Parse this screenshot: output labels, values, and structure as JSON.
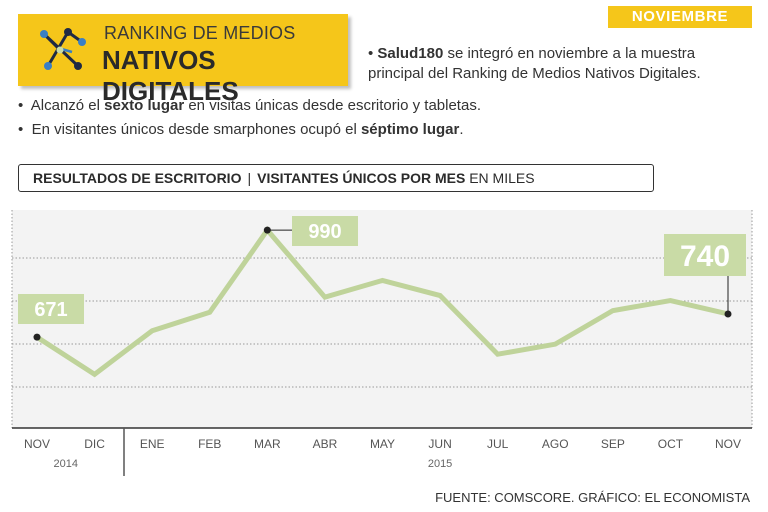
{
  "header": {
    "line1": "RANKING DE MEDIOS",
    "line2": "NATIVOS DIGITALES"
  },
  "badge": "NOVIEMBRE",
  "notes": {
    "n1_bold": "Salud180",
    "n1_rest": " se integró en noviembre a la muestra",
    "n1_line2": "principal del Ranking de Medios Nativos Digitales.",
    "n2_pre": "Alcanzó el ",
    "n2_bold": "sexto lugar",
    "n2_post": " en visitas únicas desde escritorio y tabletas.",
    "n3_pre": "En visitantes únicos desde smarphones ocupó el ",
    "n3_bold": "séptimo lugar",
    "n3_post": "."
  },
  "subhead": {
    "part1": "RESULTADOS DE ESCRITORIO",
    "separator": "|",
    "part2": "VISITANTES ÚNICOS POR MES",
    "unit": "EN MILES"
  },
  "chart_data": {
    "type": "line",
    "categories": [
      "NOV",
      "DIC",
      "ENE",
      "FEB",
      "MAR",
      "ABR",
      "MAY",
      "JUN",
      "JUL",
      "AGO",
      "SEP",
      "OCT",
      "NOV"
    ],
    "values": [
      671,
      560,
      690,
      745,
      990,
      790,
      840,
      795,
      620,
      650,
      750,
      780,
      740
    ],
    "labeled_points": [
      {
        "index": 0,
        "label": "671"
      },
      {
        "index": 4,
        "label": "990"
      },
      {
        "index": 12,
        "label": "740"
      }
    ],
    "year_labels": [
      {
        "label": "2014",
        "from": 0,
        "to": 1
      },
      {
        "label": "2015",
        "from": 2,
        "to": 12
      }
    ],
    "ylim": [
      400,
      1050
    ],
    "grid": true,
    "line_color": "#bfd39a",
    "label_bg": "#c9dba6",
    "title": "VISITANTES ÚNICOS POR MES",
    "ylabel": "EN MILES"
  },
  "source": "FUENTE: COMSCORE. GRÁFICO: EL ECONOMISTA"
}
